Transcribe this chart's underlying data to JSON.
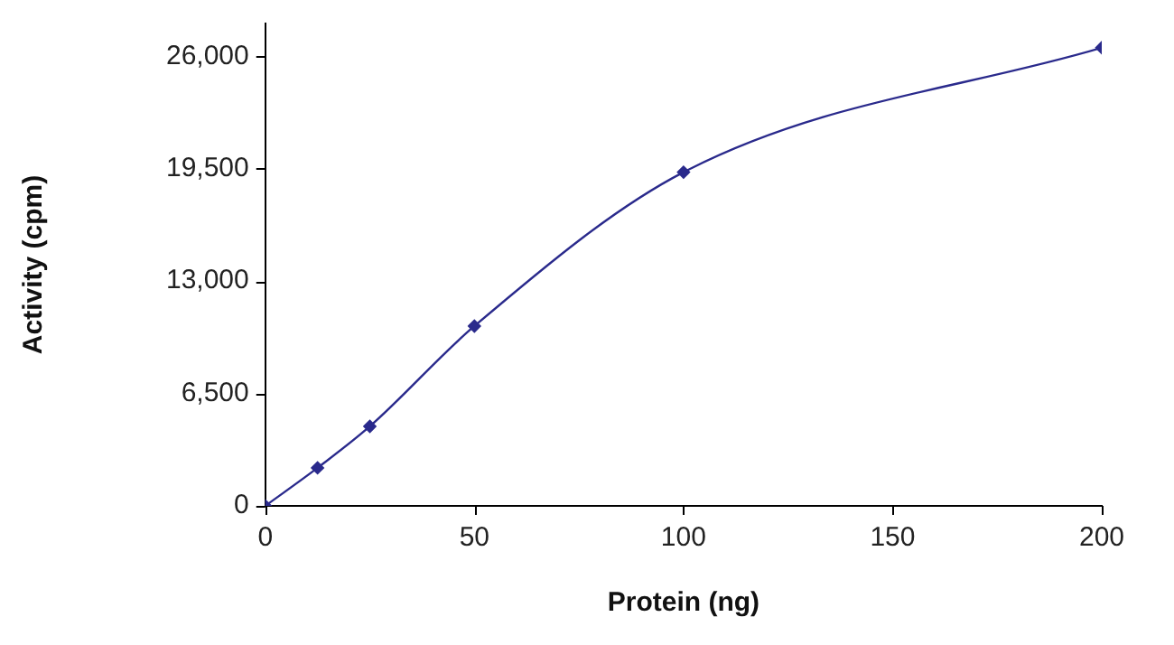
{
  "chart_data": {
    "type": "line",
    "xlabel": "Protein (ng)",
    "ylabel": "Activity (cpm)",
    "x": [
      0,
      12.5,
      25,
      50,
      100,
      200
    ],
    "series": [
      {
        "color": "#2a2a8c",
        "values": [
          0,
          2200,
          4600,
          10400,
          19300,
          26500
        ]
      }
    ],
    "xlim": [
      0,
      200
    ],
    "xticks": [
      0,
      50,
      100,
      150,
      200
    ],
    "ylim": [
      0,
      27900
    ],
    "yticks": [
      {
        "value": 0,
        "label": "0"
      },
      {
        "value": 6500,
        "label": "6,500"
      },
      {
        "value": 13000,
        "label": "13,000"
      },
      {
        "value": 19500,
        "label": "19,500"
      },
      {
        "value": 26000,
        "label": "26,000"
      }
    ],
    "marker": "diamond",
    "line_style": "solid",
    "legend": false,
    "grid": false
  }
}
